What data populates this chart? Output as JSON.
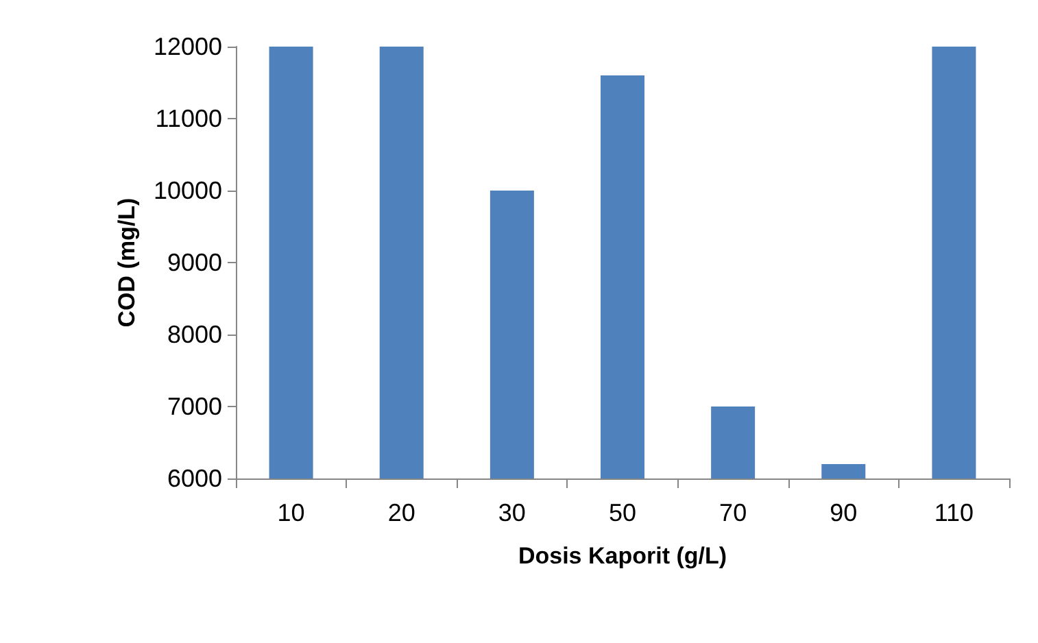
{
  "chart_data": {
    "type": "bar",
    "xlabel": "Dosis Kaporit (g/L)",
    "ylabel": "COD (mg/L)",
    "categories": [
      "10",
      "20",
      "30",
      "50",
      "70",
      "90",
      "110"
    ],
    "values": [
      12000,
      12000,
      10000,
      11600,
      7000,
      6200,
      12000
    ],
    "color": "#4f81bd",
    "ylim": [
      6000,
      12000
    ],
    "yticks": [
      6000,
      7000,
      8000,
      9000,
      10000,
      11000,
      12000
    ],
    "grid": false
  }
}
